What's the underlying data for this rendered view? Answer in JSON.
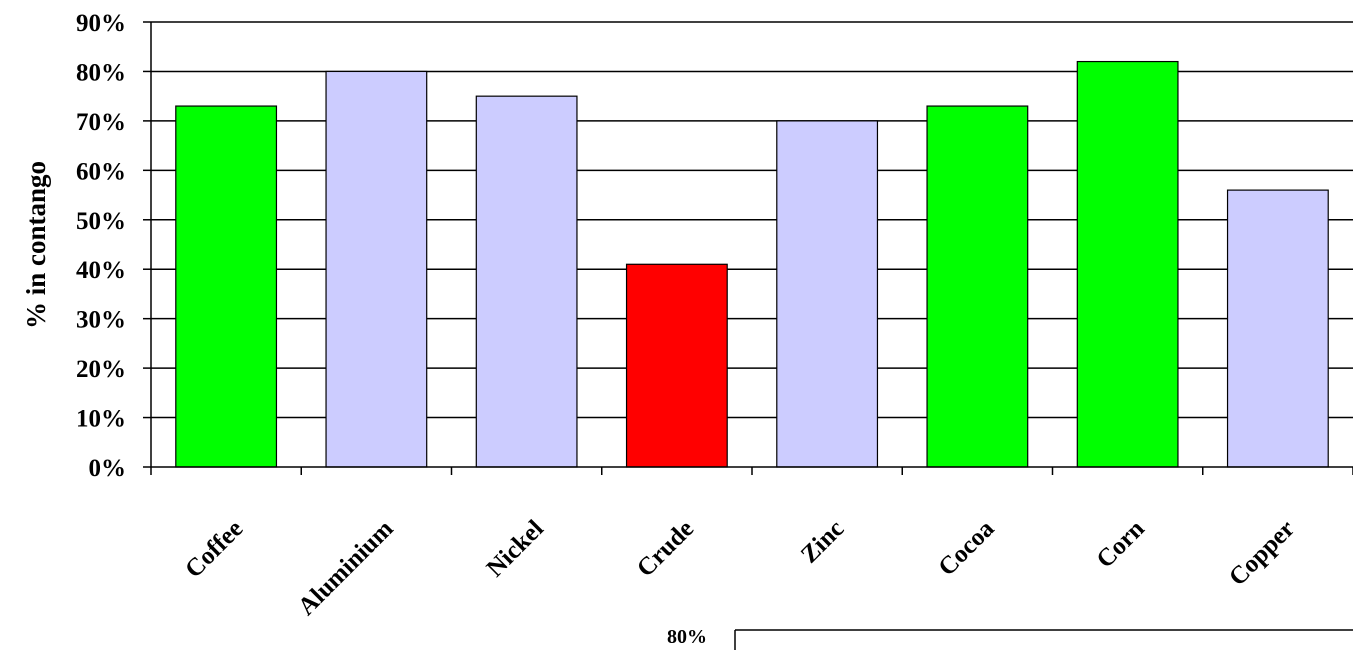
{
  "chart_data": {
    "type": "bar",
    "ylabel": "% in contango",
    "ylim": [
      0,
      90
    ],
    "yticks": [
      "0%",
      "10%",
      "20%",
      "30%",
      "40%",
      "50%",
      "60%",
      "70%",
      "80%",
      "90%"
    ],
    "grid": true,
    "categories": [
      "Coffee",
      "Aluminium",
      "Nickel",
      "Crude",
      "Zinc",
      "Cocoa",
      "Corn",
      "Copper"
    ],
    "values": [
      73,
      80,
      75,
      41,
      70,
      73,
      82,
      56
    ],
    "bar_colors": [
      "#00ff00",
      "#ccccff",
      "#ccccff",
      "#ff0000",
      "#ccccff",
      "#00ff00",
      "#00ff00",
      "#ccccff"
    ]
  },
  "inset": {
    "label": "80%"
  }
}
